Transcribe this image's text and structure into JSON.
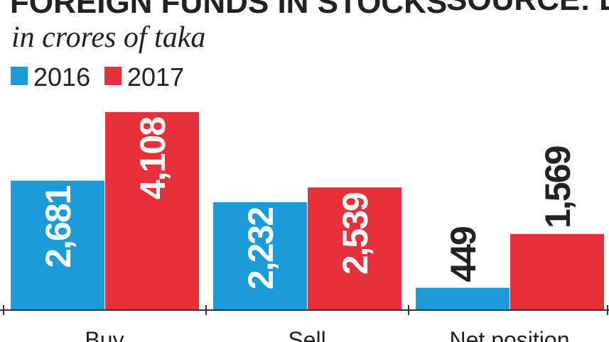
{
  "chart_data": {
    "type": "bar",
    "title": "FOREIGN FUNDS IN STOCKS",
    "subtitle": "in crores of taka",
    "source": "SOURCE: DSE",
    "categories": [
      "Buy",
      "Sell",
      "Net position"
    ],
    "series": [
      {
        "name": "2016",
        "color": "#1b9bd7",
        "values": [
          2681,
          2232,
          449
        ],
        "value_labels": [
          "2,681",
          "2,232",
          "449"
        ]
      },
      {
        "name": "2017",
        "color": "#e8303a",
        "values": [
          4108,
          2539,
          1569
        ],
        "value_labels": [
          "4,108",
          "2,539",
          "1,569"
        ]
      }
    ]
  }
}
